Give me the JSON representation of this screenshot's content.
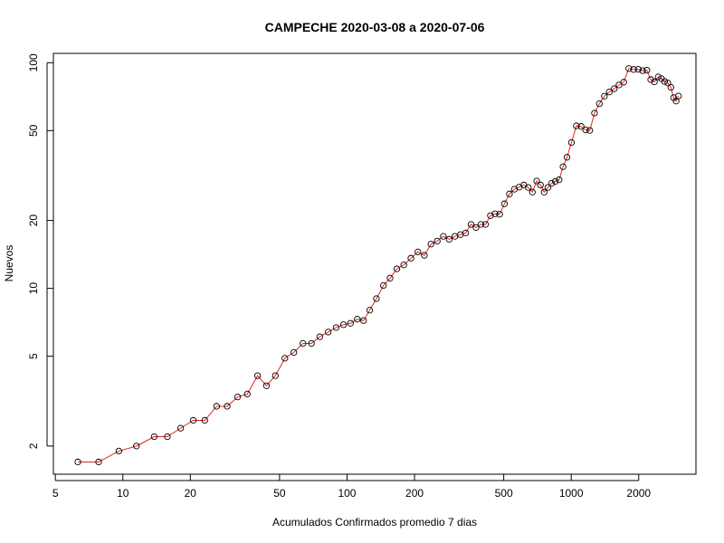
{
  "chart_data": {
    "type": "line",
    "title": "CAMPECHE 2020-03-08 a 2020-07-06",
    "xlabel": "Acumulados Confirmados promedio  7  dias",
    "ylabel": "Nuevos",
    "x_scale": "log",
    "y_scale": "log",
    "xlim": [
      4.9,
      3600
    ],
    "ylim": [
      1.5,
      110
    ],
    "x_ticks": [
      5,
      10,
      20,
      50,
      100,
      200,
      500,
      1000,
      2000
    ],
    "x_tick_labels": [
      "5",
      "10",
      "20",
      "50",
      "100",
      "200",
      "500",
      "1000",
      "2000"
    ],
    "y_ticks": [
      2,
      5,
      10,
      20,
      50,
      100
    ],
    "y_tick_labels": [
      "2",
      "5",
      "10",
      "20",
      "50",
      "100"
    ],
    "grid": false,
    "legend": "none",
    "colors": {
      "line": "#e8241c",
      "points": "#000000"
    },
    "series": [
      {
        "x": [
          6.3,
          7.8,
          9.6,
          11.5,
          13.8,
          15.8,
          18.1,
          20.6,
          23.2,
          26.2,
          29.2,
          32.5,
          35.9,
          39.9,
          43.7,
          47.9,
          52.8,
          57.9,
          63.6,
          69.4,
          75.6,
          82.4,
          89.4,
          96.4,
          103.6,
          111.1,
          118.5,
          126.2,
          135.2,
          145.3,
          155.6,
          166.8,
          179.1,
          192.7,
          207.1,
          221.3,
          236.8,
          252.6,
          268.9,
          285.5,
          302.9,
          320.3,
          338.3,
          357.2,
          376.1,
          395.3,
          414.9,
          436.1,
          457.5,
          479.4,
          503.6,
          530.1,
          557.8,
          586.3,
          614.8,
          643.3,
          671.0,
          701.4,
          729.4,
          757.0,
          787.2,
          817.3,
          849.5,
          882.8,
          919.4,
          957.8,
          1002.3,
          1054.3,
          1107.0,
          1159.4,
          1210.0,
          1270.4,
          1335.1,
          1405.8,
          1478.2,
          1554.9,
          1633.0,
          1714.3,
          1805.9,
          1898.5,
          1990.8,
          2082.1,
          2175.3,
          2263.0,
          2349.7,
          2442.0,
          2527.2,
          2610.1,
          2696.0,
          2782.7,
          2861.0,
          2937.0,
          3008.0
        ],
        "y": [
          1.7,
          1.7,
          1.9,
          2.0,
          2.2,
          2.2,
          2.4,
          2.6,
          2.6,
          3.0,
          3.0,
          3.3,
          3.4,
          4.1,
          3.7,
          4.1,
          4.9,
          5.2,
          5.7,
          5.7,
          6.1,
          6.4,
          6.7,
          6.9,
          7.0,
          7.3,
          7.2,
          8.0,
          9.0,
          10.3,
          11.1,
          12.2,
          12.7,
          13.6,
          14.5,
          14.0,
          15.7,
          16.2,
          17.0,
          16.5,
          17.0,
          17.3,
          17.6,
          19.2,
          18.6,
          19.2,
          19.2,
          21.0,
          21.4,
          21.3,
          23.7,
          26.2,
          27.5,
          28.1,
          28.7,
          28.0,
          26.7,
          29.9,
          28.7,
          26.7,
          28.0,
          29.2,
          29.8,
          30.3,
          34.6,
          38.1,
          44.3,
          52.5,
          52.2,
          50.4,
          50.1,
          59.8,
          65.8,
          71.1,
          74.2,
          76.7,
          79.7,
          82.0,
          94.2,
          93.3,
          93.5,
          92.2,
          92.6,
          84.2,
          82.3,
          86.5,
          85.0,
          82.6,
          81.3,
          77.8,
          70.0,
          67.6,
          71.2
        ]
      }
    ]
  }
}
